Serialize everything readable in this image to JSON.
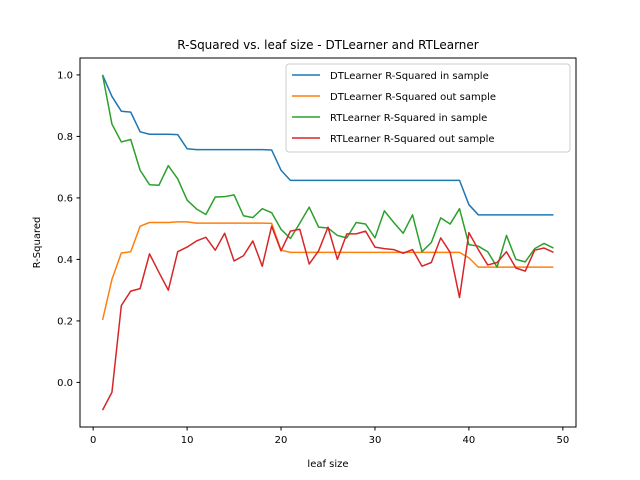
{
  "chart_data": {
    "type": "line",
    "title": "R-Squared vs. leaf size - DTLearner and RTLearner",
    "xlabel": "leaf size",
    "ylabel": "R-Squared",
    "xlim": [
      -1.4,
      51.4
    ],
    "ylim": [
      -0.145,
      1.055
    ],
    "xticks": [
      0,
      10,
      20,
      30,
      40,
      50
    ],
    "yticks": [
      0.0,
      0.2,
      0.4,
      0.6,
      0.8,
      1.0
    ],
    "grid": false,
    "legend_position": "top-right",
    "x": [
      1,
      2,
      3,
      4,
      5,
      6,
      7,
      8,
      9,
      10,
      11,
      12,
      13,
      14,
      15,
      16,
      17,
      18,
      19,
      20,
      21,
      22,
      23,
      24,
      25,
      26,
      27,
      28,
      29,
      30,
      31,
      32,
      33,
      34,
      35,
      36,
      37,
      38,
      39,
      40,
      41,
      42,
      43,
      44,
      45,
      46,
      47,
      48,
      49
    ],
    "series": [
      {
        "name": "DTLearner R-Squared in sample",
        "color": "#1f77b4",
        "values": [
          1.0,
          0.93,
          0.882,
          0.879,
          0.815,
          0.807,
          0.807,
          0.807,
          0.806,
          0.76,
          0.757,
          0.757,
          0.757,
          0.757,
          0.757,
          0.757,
          0.757,
          0.757,
          0.756,
          0.69,
          0.657,
          0.657,
          0.657,
          0.657,
          0.657,
          0.657,
          0.657,
          0.657,
          0.657,
          0.657,
          0.657,
          0.657,
          0.657,
          0.657,
          0.657,
          0.657,
          0.657,
          0.657,
          0.657,
          0.578,
          0.545,
          0.545,
          0.545,
          0.545,
          0.545,
          0.545,
          0.545,
          0.545,
          0.545
        ]
      },
      {
        "name": "DTLearner R-Squared out sample",
        "color": "#ff7f0e",
        "values": [
          0.203,
          0.335,
          0.421,
          0.425,
          0.508,
          0.52,
          0.52,
          0.52,
          0.522,
          0.522,
          0.518,
          0.518,
          0.518,
          0.518,
          0.518,
          0.518,
          0.518,
          0.518,
          0.517,
          0.43,
          0.423,
          0.423,
          0.423,
          0.423,
          0.423,
          0.423,
          0.423,
          0.423,
          0.423,
          0.423,
          0.423,
          0.423,
          0.423,
          0.423,
          0.423,
          0.423,
          0.423,
          0.423,
          0.423,
          0.405,
          0.375,
          0.375,
          0.375,
          0.375,
          0.375,
          0.375,
          0.375,
          0.375,
          0.375
        ]
      },
      {
        "name": "RTLearner R-Squared in sample",
        "color": "#2ca02c",
        "values": [
          1.0,
          0.84,
          0.782,
          0.79,
          0.69,
          0.643,
          0.641,
          0.705,
          0.662,
          0.593,
          0.564,
          0.546,
          0.603,
          0.604,
          0.61,
          0.542,
          0.536,
          0.565,
          0.552,
          0.498,
          0.468,
          0.518,
          0.57,
          0.505,
          0.502,
          0.478,
          0.47,
          0.52,
          0.515,
          0.47,
          0.558,
          0.52,
          0.485,
          0.545,
          0.425,
          0.455,
          0.535,
          0.515,
          0.565,
          0.448,
          0.443,
          0.425,
          0.375,
          0.478,
          0.4,
          0.392,
          0.435,
          0.452,
          0.437
        ]
      },
      {
        "name": "RTLearner R-Squared out sample",
        "color": "#d62728",
        "values": [
          -0.09,
          -0.032,
          0.25,
          0.297,
          0.305,
          0.418,
          0.358,
          0.3,
          0.425,
          0.44,
          0.46,
          0.472,
          0.43,
          0.485,
          0.395,
          0.412,
          0.46,
          0.378,
          0.508,
          0.428,
          0.492,
          0.498,
          0.385,
          0.428,
          0.505,
          0.4,
          0.483,
          0.483,
          0.492,
          0.44,
          0.435,
          0.432,
          0.42,
          0.432,
          0.378,
          0.39,
          0.47,
          0.423,
          0.276,
          0.487,
          0.432,
          0.382,
          0.39,
          0.425,
          0.372,
          0.362,
          0.43,
          0.437,
          0.423
        ]
      }
    ]
  }
}
